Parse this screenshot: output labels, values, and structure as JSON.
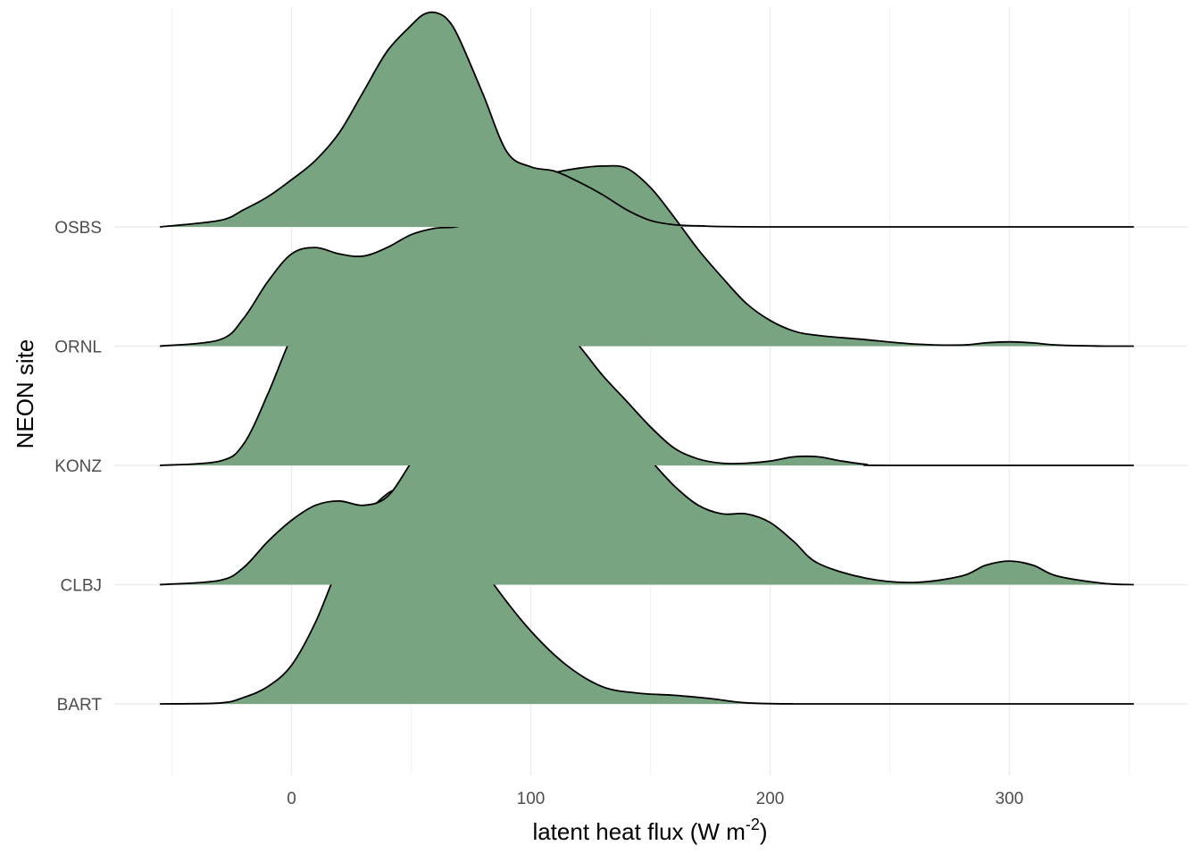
{
  "chart_data": {
    "type": "ridgeline",
    "xlabel": "latent heat flux (W m",
    "xlabel_superscript": "-2",
    "xlabel_suffix": ")",
    "ylabel": "NEON site",
    "xlim": [
      -55,
      352
    ],
    "x_ticks": [
      0,
      100,
      200,
      300
    ],
    "x_tick_labels": [
      "0",
      "100",
      "200",
      "300"
    ],
    "categories": [
      "BART",
      "CLBJ",
      "KONZ",
      "ORNL",
      "OSBS"
    ],
    "fill_color": "#79a482",
    "line_color": "#000000",
    "grid": true,
    "series": [
      {
        "name": "BART",
        "x": [
          -55,
          -30,
          -20,
          -10,
          0,
          10,
          20,
          30,
          40,
          47,
          55,
          65,
          75,
          85,
          100,
          115,
          130,
          145,
          160,
          175,
          190,
          210,
          250,
          300,
          352
        ],
        "y": [
          0,
          0.004,
          0.03,
          0.08,
          0.18,
          0.38,
          0.65,
          0.86,
          0.98,
          1.0,
          0.96,
          0.86,
          0.72,
          0.55,
          0.34,
          0.18,
          0.08,
          0.05,
          0.04,
          0.025,
          0.005,
          0,
          0,
          0,
          0
        ]
      },
      {
        "name": "CLBJ",
        "x": [
          -55,
          -30,
          -20,
          -10,
          0,
          10,
          20,
          30,
          40,
          50,
          60,
          70,
          80,
          90,
          100,
          110,
          120,
          130,
          140,
          150,
          160,
          170,
          180,
          190,
          200,
          210,
          220,
          240,
          260,
          280,
          290,
          300,
          310,
          320,
          340,
          352
        ],
        "y": [
          0,
          0.02,
          0.08,
          0.2,
          0.3,
          0.37,
          0.39,
          0.37,
          0.41,
          0.57,
          0.75,
          0.87,
          0.91,
          0.92,
          0.92,
          0.91,
          0.87,
          0.8,
          0.7,
          0.58,
          0.46,
          0.37,
          0.33,
          0.33,
          0.29,
          0.2,
          0.1,
          0.03,
          0.01,
          0.04,
          0.09,
          0.11,
          0.09,
          0.04,
          0.005,
          0
        ]
      },
      {
        "name": "KONZ",
        "x": [
          -55,
          -30,
          -20,
          -10,
          0,
          10,
          20,
          30,
          40,
          50,
          60,
          70,
          80,
          90,
          100,
          110,
          120,
          130,
          140,
          150,
          160,
          170,
          180,
          190,
          200,
          210,
          220,
          230,
          240,
          250,
          352
        ],
        "y": [
          0,
          0.02,
          0.1,
          0.33,
          0.6,
          0.8,
          0.9,
          0.95,
          0.97,
          0.96,
          0.91,
          0.85,
          0.82,
          0.81,
          0.77,
          0.68,
          0.56,
          0.42,
          0.3,
          0.18,
          0.08,
          0.03,
          0.01,
          0.01,
          0.02,
          0.04,
          0.04,
          0.02,
          0.005,
          0,
          0
        ]
      },
      {
        "name": "ORNL",
        "x": [
          -55,
          -30,
          -20,
          -10,
          0,
          10,
          20,
          30,
          40,
          50,
          60,
          70,
          80,
          90,
          100,
          110,
          120,
          130,
          140,
          150,
          160,
          170,
          180,
          190,
          200,
          210,
          220,
          240,
          260,
          280,
          290,
          300,
          310,
          320,
          340,
          352
        ],
        "y": [
          0,
          0.03,
          0.13,
          0.3,
          0.43,
          0.46,
          0.43,
          0.42,
          0.46,
          0.52,
          0.55,
          0.56,
          0.62,
          0.72,
          0.78,
          0.81,
          0.83,
          0.84,
          0.83,
          0.74,
          0.6,
          0.45,
          0.32,
          0.2,
          0.12,
          0.07,
          0.05,
          0.03,
          0.01,
          0.005,
          0.015,
          0.02,
          0.015,
          0.005,
          0,
          0
        ]
      },
      {
        "name": "OSBS",
        "x": [
          -55,
          -30,
          -20,
          -10,
          0,
          10,
          20,
          30,
          40,
          50,
          55,
          60,
          65,
          70,
          80,
          90,
          100,
          110,
          120,
          130,
          140,
          150,
          160,
          170,
          200,
          352
        ],
        "y": [
          0,
          0.03,
          0.08,
          0.14,
          0.22,
          0.31,
          0.44,
          0.63,
          0.82,
          0.94,
          0.99,
          1.0,
          0.97,
          0.88,
          0.62,
          0.35,
          0.28,
          0.26,
          0.21,
          0.15,
          0.08,
          0.03,
          0.01,
          0.005,
          0,
          0
        ]
      }
    ]
  }
}
